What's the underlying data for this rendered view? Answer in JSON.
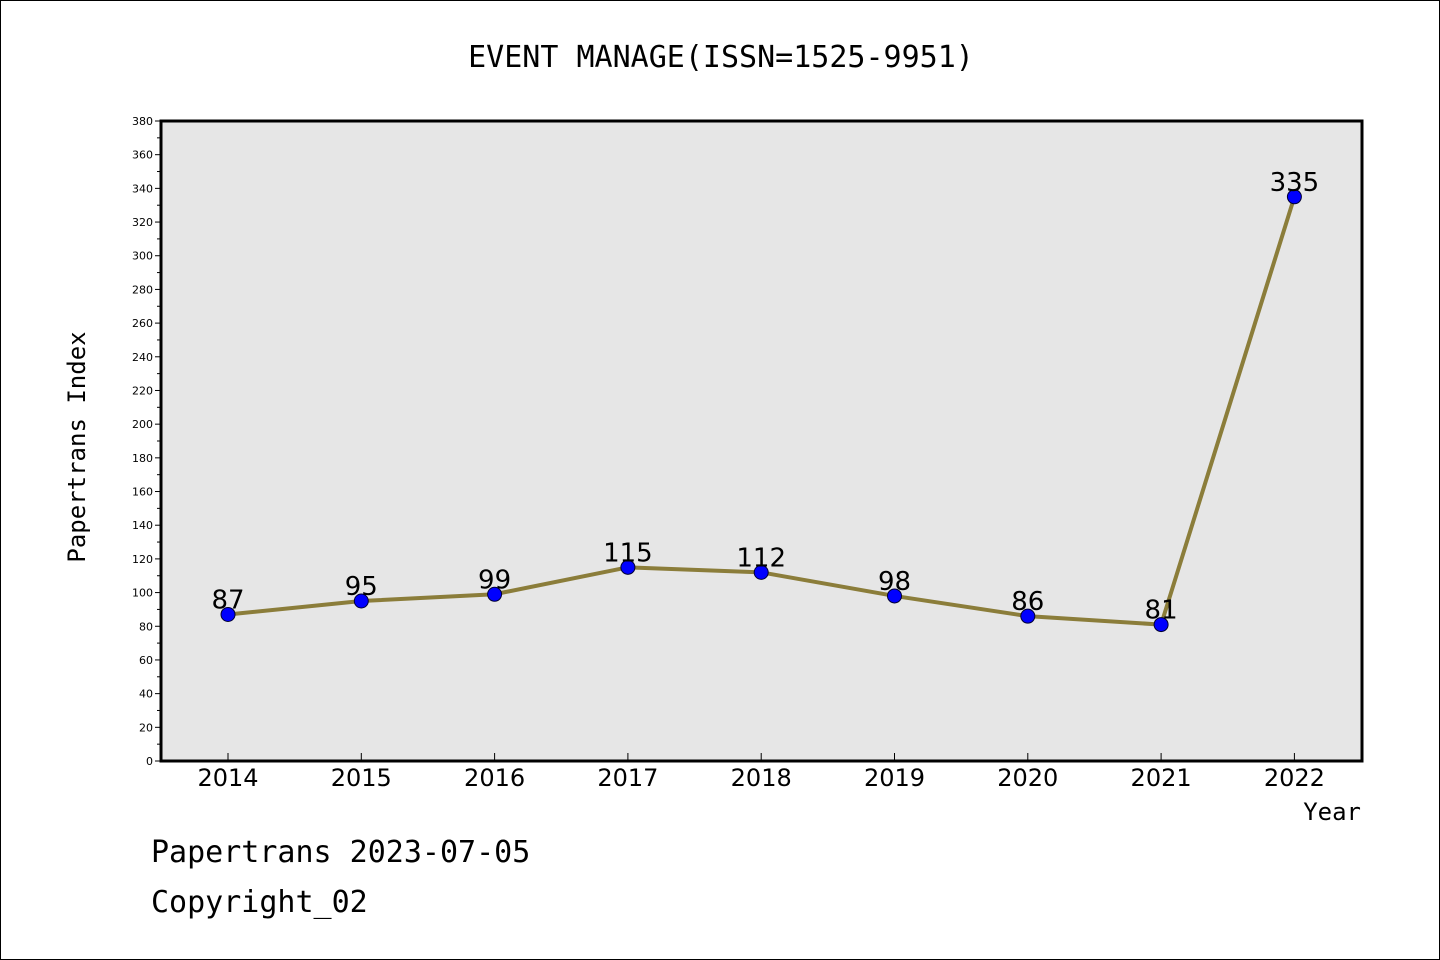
{
  "colors": {
    "plot_bg": "#e6e6e6",
    "line": "#8b7d3a",
    "marker": "#0000ff",
    "axis": "#000000"
  },
  "footer": {
    "date_line": "Papertrans 2023-07-05",
    "copyright": "Copyright_02"
  },
  "chart_data": {
    "type": "line",
    "title": "EVENT MANAGE(ISSN=1525-9951)",
    "xlabel": "Year",
    "ylabel": "Papertrans Index",
    "ylim": [
      0,
      380
    ],
    "ytick_step": 20,
    "grid": false,
    "categories": [
      "2014",
      "2015",
      "2016",
      "2017",
      "2018",
      "2019",
      "2020",
      "2021",
      "2022"
    ],
    "series": [
      {
        "values": [
          87,
          95,
          99,
          115,
          112,
          98,
          86,
          81,
          335
        ],
        "data_labels": [
          "87",
          "95",
          "99",
          "115",
          "112",
          "98",
          "86",
          "81",
          "335"
        ]
      }
    ]
  }
}
